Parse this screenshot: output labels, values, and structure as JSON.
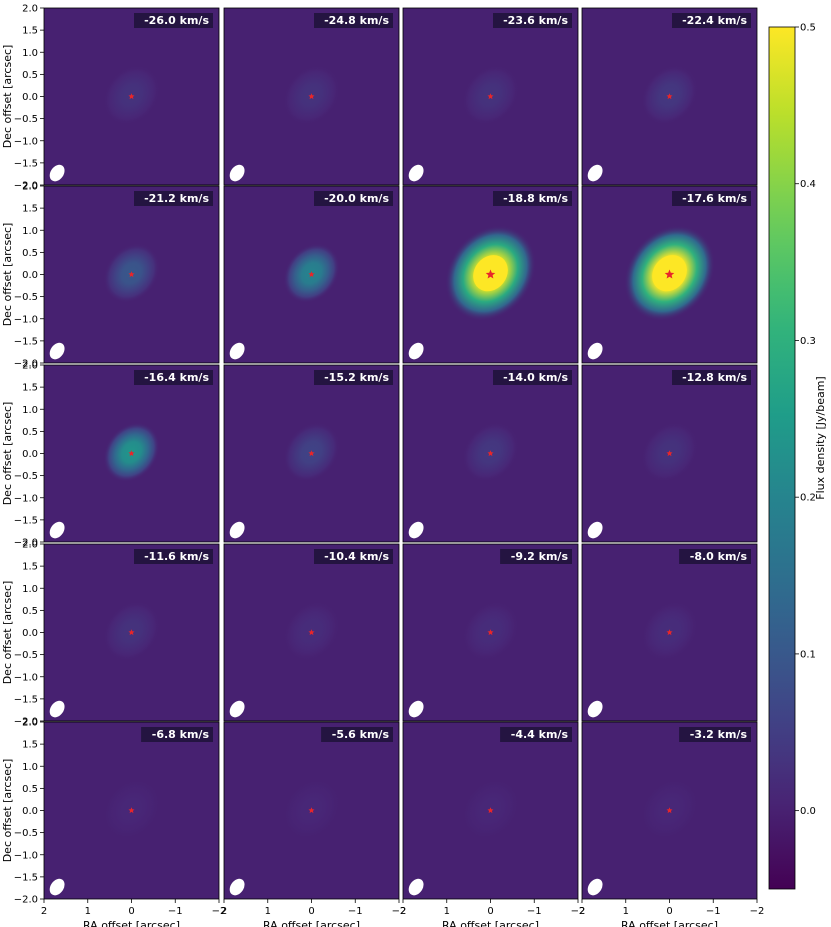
{
  "chart_data": {
    "type": "heatmap",
    "grid": {
      "rows": 5,
      "cols": 4
    },
    "panels": [
      {
        "label": "-26.0 km/s",
        "peak": 0.03
      },
      {
        "label": "-24.8 km/s",
        "peak": 0.03
      },
      {
        "label": "-23.6 km/s",
        "peak": 0.03
      },
      {
        "label": "-22.4 km/s",
        "peak": 0.04
      },
      {
        "label": "-21.2 km/s",
        "peak": 0.1
      },
      {
        "label": "-20.0 km/s",
        "peak": 0.2
      },
      {
        "label": "-18.8 km/s",
        "peak": 0.52
      },
      {
        "label": "-17.6 km/s",
        "peak": 0.55
      },
      {
        "label": "-16.4 km/s",
        "peak": 0.24
      },
      {
        "label": "-15.2 km/s",
        "peak": 0.06
      },
      {
        "label": "-14.0 km/s",
        "peak": 0.04
      },
      {
        "label": "-12.8 km/s",
        "peak": 0.03
      },
      {
        "label": "-11.6 km/s",
        "peak": 0.03
      },
      {
        "label": "-10.4 km/s",
        "peak": 0.02
      },
      {
        "label": "-9.2 km/s",
        "peak": 0.02
      },
      {
        "label": "-8.0 km/s",
        "peak": 0.02
      },
      {
        "label": "-6.8 km/s",
        "peak": 0.01
      },
      {
        "label": "-5.6 km/s",
        "peak": 0.01
      },
      {
        "label": "-4.4 km/s",
        "peak": 0.01
      },
      {
        "label": "-3.2 km/s",
        "peak": 0.01
      }
    ],
    "xlabel": "RA offset [arcsec]",
    "ylabel": "Dec offset [arcsec]",
    "xlim": [
      2,
      -2
    ],
    "ylim": [
      -2,
      2
    ],
    "xticks": [
      "2",
      "1",
      "0",
      "−1",
      "−2"
    ],
    "yticks": [
      "2.0",
      "1.5",
      "1.0",
      "0.5",
      "0.0",
      "−0.5",
      "−1.0",
      "−1.5",
      "−2.0"
    ],
    "colorbar": {
      "label": "Flux density [Jy/beam]",
      "range": [
        -0.05,
        0.5
      ],
      "ticks": [
        "0.0",
        "0.1",
        "0.2",
        "0.3",
        "0.4",
        "0.5"
      ],
      "colormap": "viridis"
    },
    "marker": {
      "x": 0,
      "y": 0,
      "color": "#e8262a",
      "shape": "star"
    }
  }
}
